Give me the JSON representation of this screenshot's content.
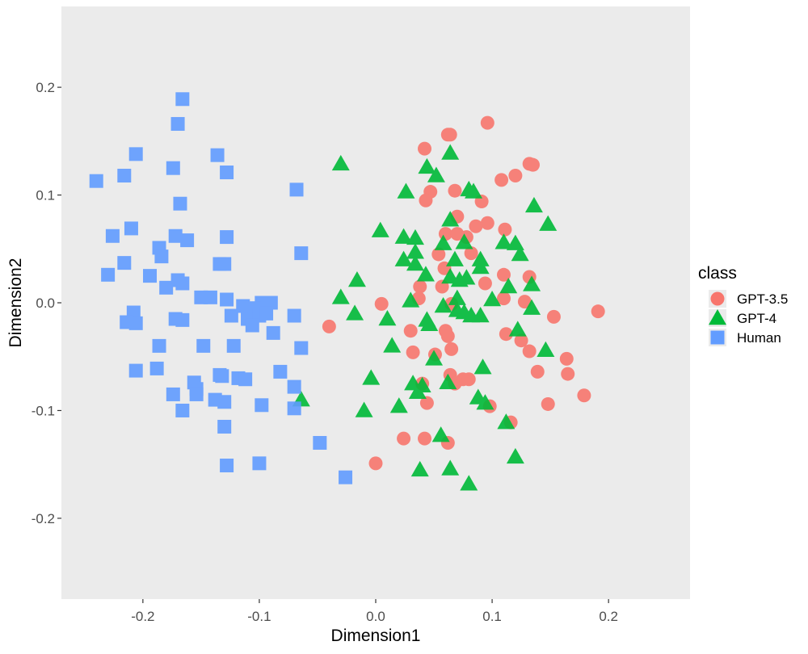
{
  "chart_data": {
    "type": "scatter",
    "title": "",
    "xlabel": "Dimension1",
    "ylabel": "Dimension2",
    "xlim": [
      -0.27,
      0.27
    ],
    "ylim": [
      -0.275,
      0.275
    ],
    "x_ticks": [
      -0.2,
      -0.1,
      0.0,
      0.1,
      0.2
    ],
    "x_tick_labels": [
      "-0.2",
      "-0.1",
      "0.0",
      "0.1",
      "0.2"
    ],
    "y_ticks": [
      -0.2,
      -0.1,
      0.0,
      0.1,
      0.2
    ],
    "y_tick_labels": [
      "-0.2",
      "-0.1",
      "0.0",
      "0.1",
      "0.2"
    ],
    "grid": false,
    "panel_background": "#ebebeb",
    "legend": {
      "title": "class",
      "position": "right"
    },
    "series": [
      {
        "name": "GPT-3.5",
        "color": "#F8766D",
        "shape": "circle",
        "points": [
          [
            0.096,
            0.167
          ],
          [
            0.062,
            0.156
          ],
          [
            0.064,
            0.156
          ],
          [
            0.042,
            0.143
          ],
          [
            0.132,
            0.129
          ],
          [
            0.135,
            0.128
          ],
          [
            0.12,
            0.118
          ],
          [
            0.108,
            0.114
          ],
          [
            0.047,
            0.103
          ],
          [
            0.068,
            0.104
          ],
          [
            0.091,
            0.094
          ],
          [
            0.043,
            0.095
          ],
          [
            0.07,
            0.08
          ],
          [
            0.096,
            0.074
          ],
          [
            0.086,
            0.071
          ],
          [
            0.111,
            0.068
          ],
          [
            0.06,
            0.064
          ],
          [
            0.07,
            0.064
          ],
          [
            0.078,
            0.061
          ],
          [
            0.054,
            0.045
          ],
          [
            0.082,
            0.046
          ],
          [
            0.059,
            0.032
          ],
          [
            0.11,
            0.026
          ],
          [
            0.132,
            0.024
          ],
          [
            0.094,
            0.018
          ],
          [
            0.038,
            0.015
          ],
          [
            0.057,
            0.015
          ],
          [
            0.037,
            0.004
          ],
          [
            0.11,
            0.004
          ],
          [
            0.128,
            0.001
          ],
          [
            0.005,
            -0.001
          ],
          [
            0.065,
            -0.001
          ],
          [
            0.191,
            -0.008
          ],
          [
            0.153,
            -0.013
          ],
          [
            0.03,
            -0.026
          ],
          [
            0.06,
            -0.026
          ],
          [
            0.112,
            -0.029
          ],
          [
            0.125,
            -0.035
          ],
          [
            0.062,
            -0.031
          ],
          [
            -0.04,
            -0.022
          ],
          [
            0.132,
            -0.045
          ],
          [
            0.032,
            -0.046
          ],
          [
            0.051,
            -0.048
          ],
          [
            0.065,
            -0.043
          ],
          [
            0.164,
            -0.052
          ],
          [
            0.139,
            -0.064
          ],
          [
            0.165,
            -0.066
          ],
          [
            0.064,
            -0.067
          ],
          [
            0.068,
            -0.075
          ],
          [
            0.075,
            -0.071
          ],
          [
            0.08,
            -0.071
          ],
          [
            0.04,
            -0.075
          ],
          [
            0.179,
            -0.086
          ],
          [
            0.148,
            -0.094
          ],
          [
            0.044,
            -0.093
          ],
          [
            0.098,
            -0.096
          ],
          [
            0.116,
            -0.111
          ],
          [
            0.024,
            -0.126
          ],
          [
            0.042,
            -0.126
          ],
          [
            0.062,
            -0.13
          ],
          [
            0.0,
            -0.149
          ]
        ]
      },
      {
        "name": "GPT-4",
        "color": "#00BA38",
        "shape": "triangle",
        "points": [
          [
            -0.03,
            0.129
          ],
          [
            0.064,
            0.139
          ],
          [
            0.044,
            0.126
          ],
          [
            0.052,
            0.118
          ],
          [
            0.026,
            0.103
          ],
          [
            0.08,
            0.105
          ],
          [
            0.084,
            0.103
          ],
          [
            0.136,
            0.09
          ],
          [
            0.064,
            0.077
          ],
          [
            0.148,
            0.073
          ],
          [
            0.004,
            0.067
          ],
          [
            0.024,
            0.061
          ],
          [
            0.034,
            0.06
          ],
          [
            0.058,
            0.055
          ],
          [
            0.076,
            0.056
          ],
          [
            0.11,
            0.056
          ],
          [
            0.12,
            0.055
          ],
          [
            0.034,
            0.047
          ],
          [
            0.124,
            0.045
          ],
          [
            0.024,
            0.04
          ],
          [
            0.068,
            0.04
          ],
          [
            0.09,
            0.04
          ],
          [
            0.034,
            0.036
          ],
          [
            0.043,
            0.026
          ],
          [
            0.064,
            0.024
          ],
          [
            0.072,
            0.021
          ],
          [
            0.078,
            0.023
          ],
          [
            0.09,
            0.033
          ],
          [
            -0.016,
            0.021
          ],
          [
            0.134,
            0.017
          ],
          [
            0.114,
            0.015
          ],
          [
            -0.03,
            0.005
          ],
          [
            0.03,
            0.002
          ],
          [
            0.058,
            -0.003
          ],
          [
            0.07,
            0.004
          ],
          [
            0.07,
            -0.007
          ],
          [
            0.076,
            -0.009
          ],
          [
            0.1,
            0.003
          ],
          [
            0.134,
            -0.005
          ],
          [
            -0.018,
            -0.01
          ],
          [
            0.01,
            -0.015
          ],
          [
            0.044,
            -0.016
          ],
          [
            0.046,
            -0.02
          ],
          [
            0.082,
            -0.012
          ],
          [
            0.09,
            -0.012
          ],
          [
            0.122,
            -0.025
          ],
          [
            0.014,
            -0.04
          ],
          [
            0.146,
            -0.044
          ],
          [
            0.05,
            -0.052
          ],
          [
            0.092,
            -0.06
          ],
          [
            -0.004,
            -0.07
          ],
          [
            0.032,
            -0.075
          ],
          [
            0.062,
            -0.074
          ],
          [
            0.036,
            -0.083
          ],
          [
            0.04,
            -0.077
          ],
          [
            0.088,
            -0.088
          ],
          [
            -0.064,
            -0.09
          ],
          [
            0.094,
            -0.093
          ],
          [
            0.02,
            -0.096
          ],
          [
            -0.01,
            -0.1
          ],
          [
            0.112,
            -0.111
          ],
          [
            0.056,
            -0.123
          ],
          [
            0.12,
            -0.143
          ],
          [
            0.038,
            -0.155
          ],
          [
            0.064,
            -0.154
          ],
          [
            0.08,
            -0.168
          ]
        ]
      },
      {
        "name": "Human",
        "color": "#619CFF",
        "shape": "square",
        "points": [
          [
            -0.166,
            0.189
          ],
          [
            -0.17,
            0.166
          ],
          [
            -0.206,
            0.138
          ],
          [
            -0.136,
            0.137
          ],
          [
            -0.174,
            0.125
          ],
          [
            -0.216,
            0.118
          ],
          [
            -0.128,
            0.121
          ],
          [
            -0.24,
            0.113
          ],
          [
            -0.068,
            0.105
          ],
          [
            -0.168,
            0.092
          ],
          [
            -0.21,
            0.069
          ],
          [
            -0.226,
            0.062
          ],
          [
            -0.172,
            0.062
          ],
          [
            -0.162,
            0.058
          ],
          [
            -0.128,
            0.061
          ],
          [
            -0.186,
            0.051
          ],
          [
            -0.184,
            0.043
          ],
          [
            -0.064,
            0.046
          ],
          [
            -0.216,
            0.037
          ],
          [
            -0.134,
            0.036
          ],
          [
            -0.13,
            0.036
          ],
          [
            -0.23,
            0.026
          ],
          [
            -0.194,
            0.025
          ],
          [
            -0.17,
            0.021
          ],
          [
            -0.166,
            0.018
          ],
          [
            -0.18,
            0.014
          ],
          [
            -0.15,
            0.005
          ],
          [
            -0.142,
            0.005
          ],
          [
            -0.128,
            0.003
          ],
          [
            -0.114,
            -0.003
          ],
          [
            -0.098,
            0.0
          ],
          [
            -0.09,
            0.0
          ],
          [
            -0.104,
            -0.005
          ],
          [
            -0.208,
            -0.009
          ],
          [
            -0.214,
            -0.018
          ],
          [
            -0.206,
            -0.019
          ],
          [
            -0.172,
            -0.015
          ],
          [
            -0.166,
            -0.016
          ],
          [
            -0.124,
            -0.012
          ],
          [
            -0.11,
            -0.015
          ],
          [
            -0.1,
            -0.012
          ],
          [
            -0.094,
            -0.01
          ],
          [
            -0.106,
            -0.021
          ],
          [
            -0.07,
            -0.012
          ],
          [
            -0.088,
            -0.028
          ],
          [
            -0.186,
            -0.04
          ],
          [
            -0.148,
            -0.04
          ],
          [
            -0.122,
            -0.04
          ],
          [
            -0.064,
            -0.042
          ],
          [
            -0.206,
            -0.063
          ],
          [
            -0.188,
            -0.061
          ],
          [
            -0.082,
            -0.064
          ],
          [
            -0.134,
            -0.067
          ],
          [
            -0.132,
            -0.068
          ],
          [
            -0.118,
            -0.07
          ],
          [
            -0.112,
            -0.071
          ],
          [
            -0.156,
            -0.074
          ],
          [
            -0.154,
            -0.08
          ],
          [
            -0.174,
            -0.085
          ],
          [
            -0.154,
            -0.085
          ],
          [
            -0.07,
            -0.078
          ],
          [
            -0.138,
            -0.09
          ],
          [
            -0.13,
            -0.092
          ],
          [
            -0.098,
            -0.095
          ],
          [
            -0.166,
            -0.1
          ],
          [
            -0.07,
            -0.098
          ],
          [
            -0.13,
            -0.115
          ],
          [
            -0.048,
            -0.13
          ],
          [
            -0.128,
            -0.151
          ],
          [
            -0.1,
            -0.149
          ],
          [
            -0.026,
            -0.162
          ]
        ]
      }
    ]
  }
}
